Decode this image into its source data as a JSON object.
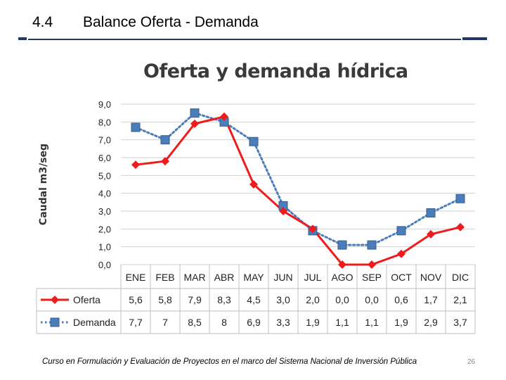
{
  "slide": {
    "section_number": "4.4",
    "title": "Balance Oferta - Demanda",
    "footer": "Curso en Formulación y Evaluación de Proyectos en el marco del Sistema Nacional de Inversión Pública",
    "page_number": "26"
  },
  "colors": {
    "header_rule": "#1f3864",
    "oferta": "#ee1c1c",
    "demanda": "#4a7ebb",
    "grid": "#cfcfcf"
  },
  "chart_data": {
    "type": "line",
    "title": "Oferta y demanda hídrica",
    "xlabel": "",
    "ylabel": "Caudal m3/seg",
    "ylim": [
      0,
      9
    ],
    "y_ticks": [
      "0,0",
      "1,0",
      "2,0",
      "3,0",
      "4,0",
      "5,0",
      "6,0",
      "7,0",
      "8,0",
      "9,0"
    ],
    "categories": [
      "ENE",
      "FEB",
      "MAR",
      "ABR",
      "MAY",
      "JUN",
      "JUL",
      "AGO",
      "SEP",
      "OCT",
      "NOV",
      "DIC"
    ],
    "series": [
      {
        "name": "Oferta",
        "values": [
          5.6,
          5.8,
          7.9,
          8.3,
          4.5,
          3.0,
          2.0,
          0.0,
          0.0,
          0.6,
          1.7,
          2.1
        ],
        "labels": [
          "5,6",
          "5,8",
          "7,9",
          "8,3",
          "4,5",
          "3,0",
          "2,0",
          "0,0",
          "0,0",
          "0,6",
          "1,7",
          "2,1"
        ]
      },
      {
        "name": "Demanda",
        "values": [
          7.7,
          7,
          8.5,
          8,
          6.9,
          3.3,
          1.9,
          1.1,
          1.1,
          1.9,
          2.9,
          3.7
        ],
        "labels": [
          "7,7",
          "7",
          "8,5",
          "8",
          "6,9",
          "3,3",
          "1,9",
          "1,1",
          "1,1",
          "1,9",
          "2,9",
          "3,7"
        ]
      }
    ],
    "data_table": true,
    "grid": true
  }
}
